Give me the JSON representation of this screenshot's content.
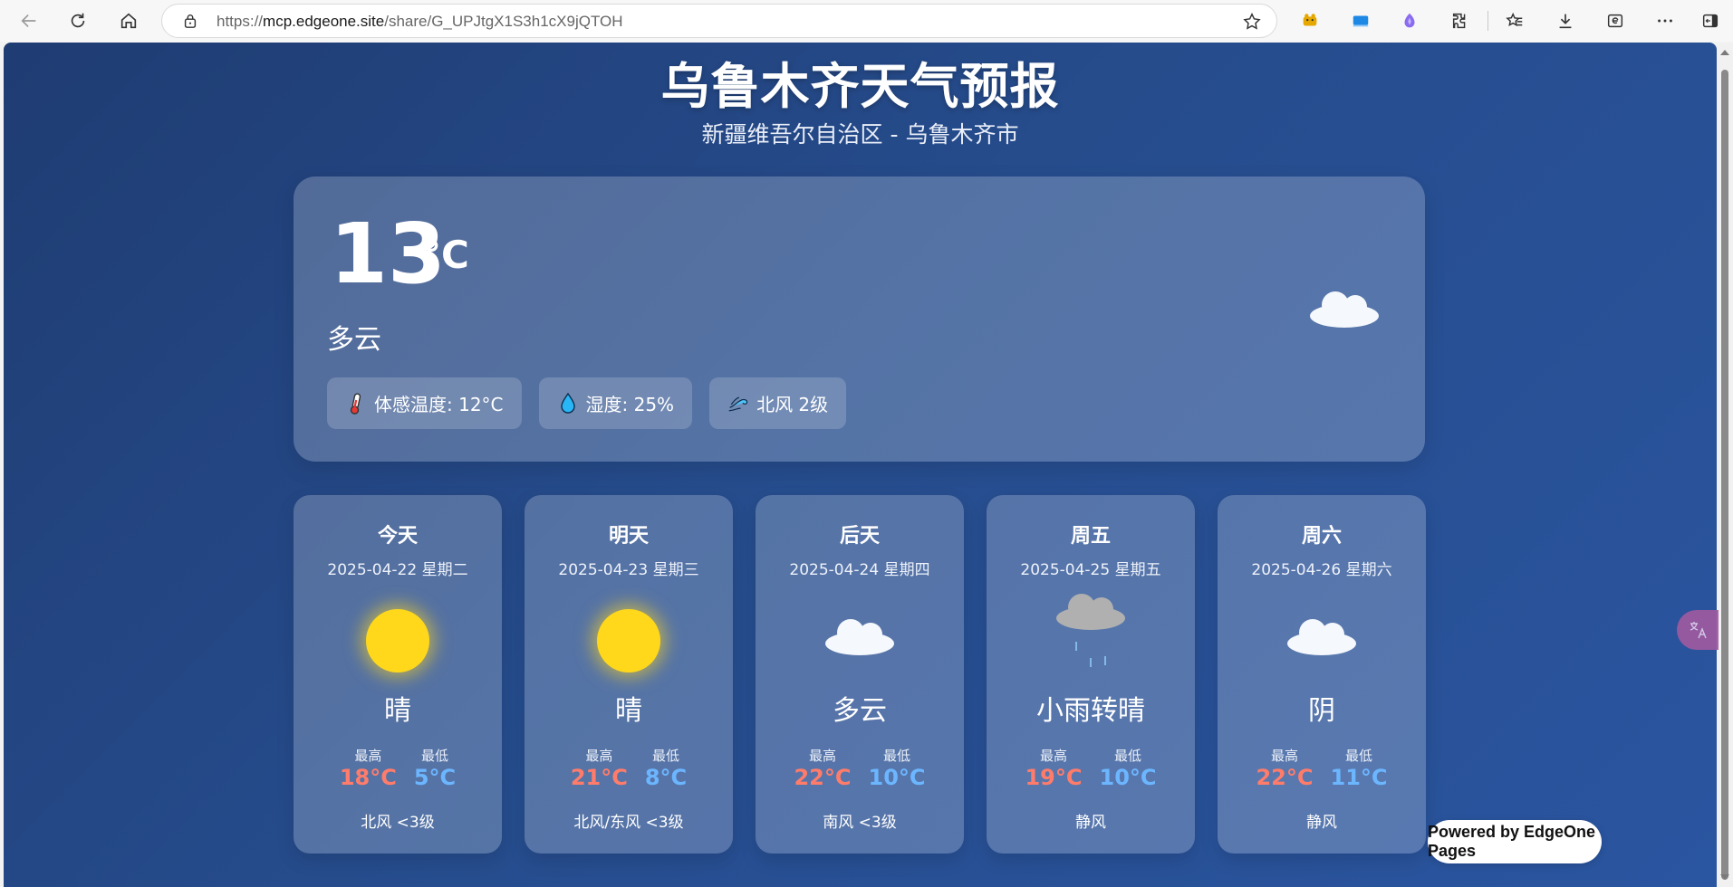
{
  "browser": {
    "url_host": "mcp.edgeone.site",
    "url_prefix": "https://",
    "url_path": "/share/G_UPJtgX1S3h1cX9jQTOH"
  },
  "page": {
    "title": "乌鲁木齐天气预报",
    "subtitle": "新疆维吾尔自治区 - 乌鲁木齐市"
  },
  "current": {
    "temp": "13",
    "unit": "°C",
    "condition": "多云",
    "icon": "cloud-icon",
    "chips": [
      {
        "icon": "thermometer-icon",
        "text": "体感温度: 12°C"
      },
      {
        "icon": "droplet-icon",
        "text": "湿度: 25%"
      },
      {
        "icon": "wind-icon",
        "text": "北风 2级"
      }
    ]
  },
  "forecast": [
    {
      "name": "今天",
      "date": "2025-04-22 星期二",
      "icon": "sun-icon",
      "condition": "晴",
      "high_label": "最高",
      "low_label": "最低",
      "high": "18°C",
      "low": "5°C",
      "wind": "北风 <3级"
    },
    {
      "name": "明天",
      "date": "2025-04-23 星期三",
      "icon": "sun-icon",
      "condition": "晴",
      "high_label": "最高",
      "low_label": "最低",
      "high": "21°C",
      "low": "8°C",
      "wind": "北风/东风 <3级"
    },
    {
      "name": "后天",
      "date": "2025-04-24 星期四",
      "icon": "cloud-icon",
      "condition": "多云",
      "high_label": "最高",
      "low_label": "最低",
      "high": "22°C",
      "low": "10°C",
      "wind": "南风 <3级"
    },
    {
      "name": "周五",
      "date": "2025-04-25 星期五",
      "icon": "rain-cloud-icon",
      "condition": "小雨转晴",
      "high_label": "最高",
      "low_label": "最低",
      "high": "19°C",
      "low": "10°C",
      "wind": "静风"
    },
    {
      "name": "周六",
      "date": "2025-04-26 星期六",
      "icon": "cloud-icon",
      "condition": "阴",
      "high_label": "最高",
      "low_label": "最低",
      "high": "22°C",
      "low": "11°C",
      "wind": "静风"
    }
  ],
  "footer": {
    "powered": "Powered by EdgeOne Pages"
  },
  "colors": {
    "high": "#ff7c6b",
    "low": "#6cb6ff",
    "background": "#264c8c"
  }
}
